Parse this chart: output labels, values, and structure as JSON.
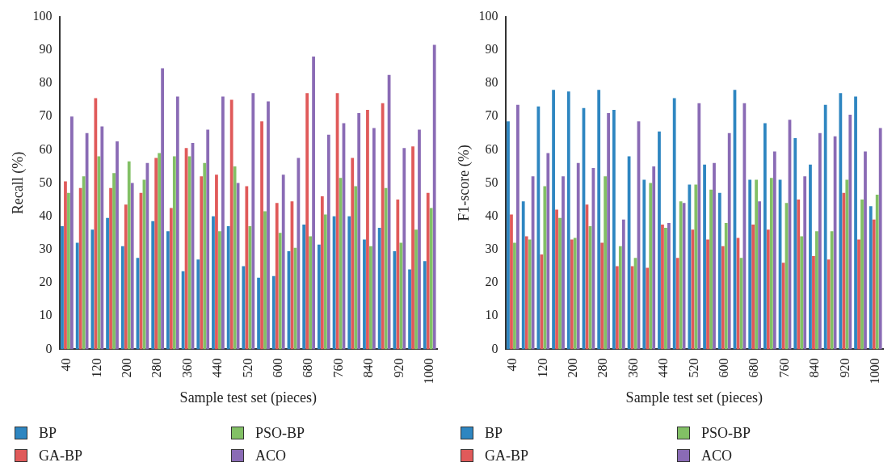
{
  "chart_data": [
    {
      "type": "bar",
      "xlabel": "Sample test set (pieces)",
      "ylabel": "Recall (%)",
      "categories": [
        "40",
        null,
        "120",
        null,
        "200",
        null,
        "280",
        null,
        "360",
        null,
        "440",
        null,
        "520",
        null,
        "600",
        null,
        "680",
        null,
        "760",
        null,
        "840",
        null,
        "920",
        null,
        "1000"
      ],
      "ylim": [
        0,
        100
      ],
      "yticks": [
        0,
        10,
        20,
        30,
        40,
        50,
        60,
        70,
        80,
        90,
        100
      ],
      "legend": "bottom",
      "series": [
        {
          "name": "BP",
          "color": "#2e86c1",
          "values": [
            37,
            32,
            36,
            39.5,
            31,
            27.5,
            38.5,
            35.5,
            23.5,
            27,
            40,
            37,
            25,
            21.5,
            22,
            29.5,
            37.5,
            31.5,
            40,
            40,
            33,
            36.5,
            29.5,
            24,
            26.5
          ]
        },
        {
          "name": "GA-BP",
          "color": "#e05a5a",
          "values": [
            50.5,
            48.5,
            75.5,
            48.5,
            43.5,
            47,
            57.5,
            42.5,
            60.5,
            52,
            52.5,
            75,
            49,
            68.5,
            44,
            44.5,
            77,
            46,
            77,
            57.5,
            72,
            74,
            45,
            61,
            47
          ]
        },
        {
          "name": "PSO-BP",
          "color": "#82c065",
          "values": [
            47,
            52,
            58,
            53,
            56.5,
            51,
            59,
            58,
            58,
            56,
            35.5,
            55,
            37,
            41.5,
            35,
            30.5,
            34,
            40.5,
            51.5,
            49,
            31,
            48.5,
            32,
            36,
            42.5
          ]
        },
        {
          "name": "ACO",
          "color": "#8a6bb5",
          "values": [
            70,
            65,
            67,
            62.5,
            50,
            56,
            84.5,
            76,
            62,
            66,
            76,
            50,
            77,
            74.5,
            52.5,
            57.5,
            88,
            64.5,
            68,
            71,
            66.5,
            82.5,
            60.5,
            66,
            91.5
          ]
        }
      ]
    },
    {
      "type": "bar",
      "xlabel": "Sample test set (pieces)",
      "ylabel": "F1-score (%)",
      "categories": [
        "40",
        null,
        "120",
        null,
        "200",
        null,
        "280",
        null,
        "360",
        null,
        "440",
        null,
        "520",
        null,
        "600",
        null,
        "680",
        null,
        "760",
        null,
        "840",
        null,
        "920",
        null,
        "1000"
      ],
      "ylim": [
        0,
        100
      ],
      "yticks": [
        0,
        10,
        20,
        30,
        40,
        50,
        60,
        70,
        80,
        90,
        100
      ],
      "legend": "bottom",
      "series": [
        {
          "name": "BP",
          "color": "#2e86c1",
          "values": [
            68.5,
            44.5,
            73,
            78,
            77.5,
            72.5,
            78,
            72,
            58,
            51,
            65.5,
            75.5,
            49.5,
            55.5,
            47,
            78,
            51,
            68,
            51,
            63.5,
            55.5,
            73.5,
            77,
            76,
            43
          ]
        },
        {
          "name": "GA-BP",
          "color": "#e05a5a",
          "values": [
            40.5,
            34,
            28.5,
            42,
            33,
            43.5,
            32,
            25,
            25,
            24.5,
            37.5,
            27.5,
            36,
            33,
            31,
            33.5,
            37.5,
            36,
            26,
            45,
            28,
            27,
            47,
            33,
            39
          ]
        },
        {
          "name": "PSO-BP",
          "color": "#82c065",
          "values": [
            32,
            33,
            49,
            39.5,
            33.5,
            37,
            52,
            31,
            27.5,
            50,
            36.5,
            44.5,
            49.5,
            48,
            38,
            27.5,
            51,
            51.5,
            44,
            34,
            35.5,
            35.5,
            51,
            45,
            46.5
          ]
        },
        {
          "name": "ACO",
          "color": "#8a6bb5",
          "values": [
            73.5,
            52,
            59,
            52,
            56,
            54.5,
            71,
            39,
            68.5,
            55,
            38,
            44,
            74,
            56,
            65,
            74,
            44.5,
            59.5,
            69,
            52,
            65,
            64,
            70.5,
            59.5,
            66.5
          ]
        }
      ]
    }
  ]
}
